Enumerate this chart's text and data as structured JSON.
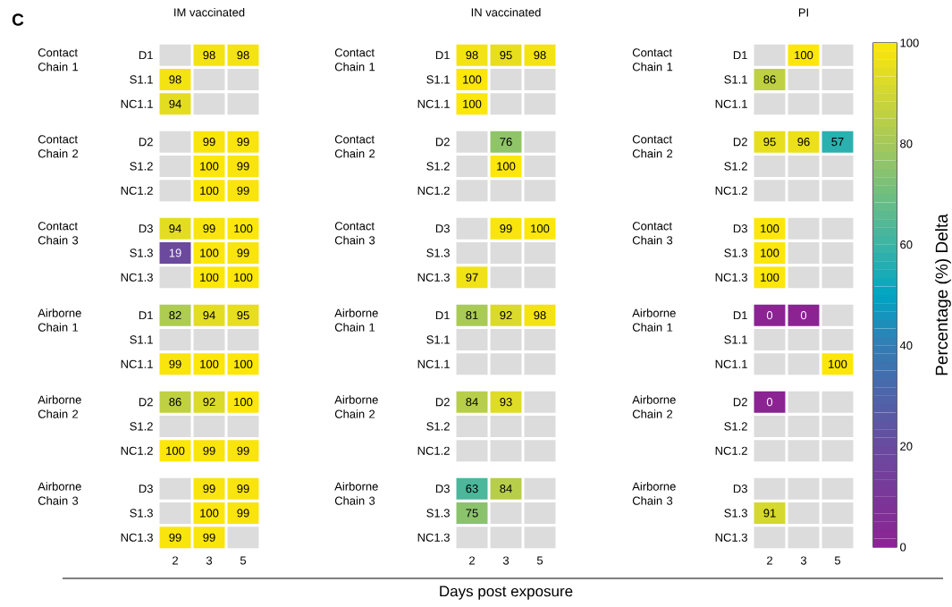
{
  "chart_data": [
    {
      "type": "heatmap",
      "title": "IM vaccinated",
      "ylabel": "Contact Chain 1",
      "annotations": [
        "C"
      ],
      "categories": [
        "2",
        "3",
        "5"
      ],
      "y_categories": [
        "D1",
        "S1.1",
        "NC1.1"
      ],
      "cells": [
        [
          null,
          98,
          98
        ],
        [
          98,
          null,
          null
        ],
        [
          94,
          null,
          null
        ]
      ],
      "data_labels": true,
      "tick_labels": "y"
    },
    {
      "type": "heatmap",
      "ylabel": "Contact Chain 2",
      "categories": [
        "2",
        "3",
        "5"
      ],
      "y_categories": [
        "D2",
        "S1.2",
        "NC1.2"
      ],
      "cells": [
        [
          null,
          99,
          99
        ],
        [
          null,
          100,
          99
        ],
        [
          null,
          100,
          99
        ]
      ],
      "data_labels": true,
      "tick_labels": "y"
    },
    {
      "type": "heatmap",
      "ylabel": "Contact Chain 3",
      "categories": [
        "2",
        "3",
        "5"
      ],
      "y_categories": [
        "D3",
        "S1.3",
        "NC1.3"
      ],
      "cells": [
        [
          94,
          99,
          100
        ],
        [
          19,
          100,
          99
        ],
        [
          null,
          100,
          100
        ]
      ],
      "data_labels": true,
      "tick_labels": "y"
    },
    {
      "type": "heatmap",
      "ylabel": "Airborne Chain 1",
      "categories": [
        "2",
        "3",
        "5"
      ],
      "y_categories": [
        "D1",
        "S1.1",
        "NC1.1"
      ],
      "cells": [
        [
          82,
          94,
          95
        ],
        [
          null,
          null,
          null
        ],
        [
          99,
          100,
          100
        ]
      ],
      "data_labels": true,
      "tick_labels": "y"
    },
    {
      "type": "heatmap",
      "ylabel": "Airborne Chain 2",
      "categories": [
        "2",
        "3",
        "5"
      ],
      "y_categories": [
        "D2",
        "S1.2",
        "NC1.2"
      ],
      "cells": [
        [
          86,
          92,
          100
        ],
        [
          null,
          null,
          null
        ],
        [
          100,
          99,
          99
        ]
      ],
      "data_labels": true,
      "tick_labels": "y"
    },
    {
      "type": "heatmap",
      "ylabel": "Airborne Chain 3",
      "categories": [
        "2",
        "3",
        "5"
      ],
      "y_categories": [
        "D3",
        "S1.3",
        "NC1.3"
      ],
      "cells": [
        [
          null,
          99,
          99
        ],
        [
          null,
          100,
          99
        ],
        [
          99,
          99,
          null
        ]
      ],
      "data_labels": true
    },
    {
      "type": "heatmap",
      "title": "IN vaccinated",
      "ylabel": "Contact Chain 1",
      "categories": [
        "2",
        "3",
        "5"
      ],
      "y_categories": [
        "D1",
        "S1.1",
        "NC1.1"
      ],
      "cells": [
        [
          98,
          95,
          98
        ],
        [
          100,
          null,
          null
        ],
        [
          100,
          null,
          null
        ]
      ],
      "data_labels": true,
      "tick_labels": "y"
    },
    {
      "type": "heatmap",
      "ylabel": "Contact Chain 2",
      "categories": [
        "2",
        "3",
        "5"
      ],
      "y_categories": [
        "D2",
        "S1.2",
        "NC1.2"
      ],
      "cells": [
        [
          null,
          76,
          null
        ],
        [
          null,
          100,
          null
        ],
        [
          null,
          null,
          null
        ]
      ],
      "data_labels": true,
      "tick_labels": "y"
    },
    {
      "type": "heatmap",
      "ylabel": "Contact Chain 3",
      "categories": [
        "2",
        "3",
        "5"
      ],
      "y_categories": [
        "D3",
        "S1.3",
        "NC1.3"
      ],
      "cells": [
        [
          null,
          99,
          100
        ],
        [
          null,
          null,
          null
        ],
        [
          97,
          null,
          null
        ]
      ],
      "data_labels": true,
      "tick_labels": "y"
    },
    {
      "type": "heatmap",
      "ylabel": "Airborne Chain 1",
      "categories": [
        "2",
        "3",
        "5"
      ],
      "y_categories": [
        "D1",
        "S1.1",
        "NC1.1"
      ],
      "cells": [
        [
          81,
          92,
          98
        ],
        [
          null,
          null,
          null
        ],
        [
          null,
          null,
          null
        ]
      ],
      "data_labels": true,
      "tick_labels": "y"
    },
    {
      "type": "heatmap",
      "ylabel": "Airborne Chain 2",
      "categories": [
        "2",
        "3",
        "5"
      ],
      "y_categories": [
        "D2",
        "S1.2",
        "NC1.2"
      ],
      "cells": [
        [
          84,
          93,
          null
        ],
        [
          null,
          null,
          null
        ],
        [
          null,
          null,
          null
        ]
      ],
      "data_labels": true,
      "tick_labels": "y"
    },
    {
      "type": "heatmap",
      "ylabel": "Airborne Chain 3",
      "xlabel": "Days post exposure",
      "categories": [
        "2",
        "3",
        "5"
      ],
      "y_categories": [
        "D3",
        "S1.3",
        "NC1.3"
      ],
      "cells": [
        [
          63,
          84,
          null
        ],
        [
          75,
          null,
          null
        ],
        [
          null,
          null,
          null
        ]
      ],
      "data_labels": true
    },
    {
      "type": "heatmap",
      "title": "PI",
      "ylabel": "Contact Chain 1",
      "categories": [
        "2",
        "3",
        "5"
      ],
      "y_categories": [
        "D1",
        "S1.1",
        "NC1.1"
      ],
      "cells": [
        [
          null,
          100,
          null
        ],
        [
          86,
          null,
          null
        ],
        [
          null,
          null,
          null
        ]
      ],
      "data_labels": true,
      "tick_labels": "y"
    },
    {
      "type": "heatmap",
      "ylabel": "Contact Chain 2",
      "categories": [
        "2",
        "3",
        "5"
      ],
      "y_categories": [
        "D2",
        "S1.2",
        "NC1.2"
      ],
      "cells": [
        [
          95,
          96,
          57
        ],
        [
          null,
          null,
          null
        ],
        [
          null,
          null,
          null
        ]
      ],
      "data_labels": true,
      "tick_labels": "y"
    },
    {
      "type": "heatmap",
      "ylabel": "Contact Chain 3",
      "categories": [
        "2",
        "3",
        "5"
      ],
      "y_categories": [
        "D3",
        "S1.3",
        "NC1.3"
      ],
      "cells": [
        [
          100,
          null,
          null
        ],
        [
          100,
          null,
          null
        ],
        [
          100,
          null,
          null
        ]
      ],
      "data_labels": true,
      "tick_labels": "y"
    },
    {
      "type": "heatmap",
      "ylabel": "Airborne Chain 1",
      "categories": [
        "2",
        "3",
        "5"
      ],
      "y_categories": [
        "D1",
        "S1.1",
        "NC1.1"
      ],
      "cells": [
        [
          0,
          0,
          null
        ],
        [
          null,
          null,
          null
        ],
        [
          null,
          null,
          100
        ]
      ],
      "data_labels": true,
      "tick_labels": "y"
    },
    {
      "type": "heatmap",
      "ylabel": "Airborne Chain 2",
      "categories": [
        "2",
        "3",
        "5"
      ],
      "y_categories": [
        "D2",
        "S1.2",
        "NC1.2"
      ],
      "cells": [
        [
          0,
          null,
          null
        ],
        [
          null,
          null,
          null
        ],
        [
          null,
          null,
          null
        ]
      ],
      "data_labels": true,
      "tick_labels": "y"
    },
    {
      "type": "heatmap",
      "ylabel": "Airborne Chain 3",
      "categories": [
        "2",
        "3",
        "5"
      ],
      "y_categories": [
        "D3",
        "S1.3",
        "NC1.3"
      ],
      "cells": [
        [
          null,
          null,
          null
        ],
        [
          91,
          null,
          null
        ],
        [
          null,
          null,
          null
        ]
      ],
      "data_labels": true,
      "clim": [
        0,
        100
      ],
      "cticks": [
        0,
        20,
        40,
        60,
        80,
        100
      ],
      "clabel": "Percentage (%) Delta"
    }
  ]
}
